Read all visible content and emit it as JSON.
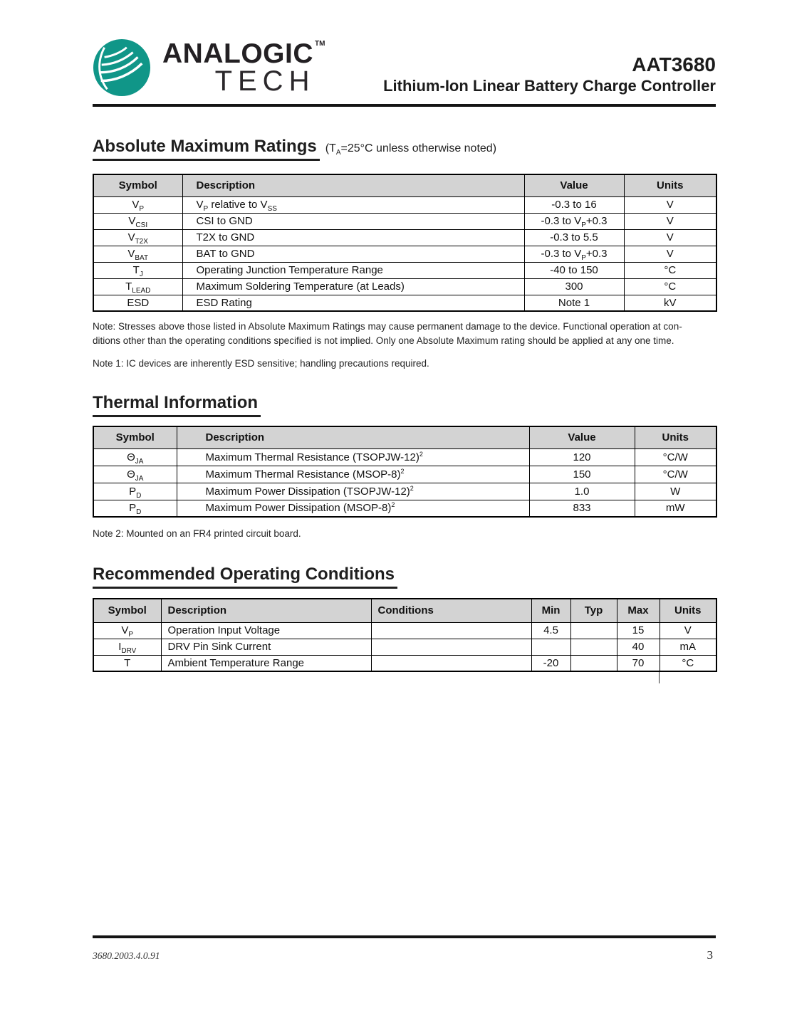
{
  "header": {
    "logo": {
      "line1": "ANALOGIC",
      "line2": "TECH",
      "tm": "TM",
      "teal": "#109688"
    },
    "part_number": "AAT3680",
    "subtitle": "Lithium-Ion Linear Battery Charge Controller"
  },
  "abs_max": {
    "title": "Absolute Maximum Ratings",
    "title_note": "(T~A~=25°C unless otherwise noted)",
    "table": {
      "headers": [
        "Symbol",
        "Description",
        "Value",
        "Units"
      ],
      "rows": [
        [
          "V~P~",
          "V~P~ relative to V~SS~",
          "-0.3 to 16",
          "V"
        ],
        [
          "V~CSI~",
          "CSI to GND",
          "-0.3 to V~P~+0.3",
          "V"
        ],
        [
          "V~T2X~",
          "T2X to GND",
          "-0.3 to 5.5",
          "V"
        ],
        [
          "V~BAT~",
          "BAT to GND",
          "-0.3 to V~P~+0.3",
          "V"
        ],
        [
          "T~J~",
          "Operating Junction Temperature Range",
          "-40 to 150",
          "°C"
        ],
        [
          "T~LEAD~",
          "Maximum Soldering Temperature (at Leads)",
          "300",
          "°C"
        ],
        [
          "ESD",
          "ESD Rating",
          "Note 1",
          "kV"
        ]
      ]
    },
    "note_lines": [
      "Note: Stresses above those listed in Absolute Maximum Ratings may cause permanent damage to the device.  Functional operation at con-",
      "ditions other than the operating conditions specified is not implied.  Only one Absolute Maximum rating should be applied at any one time."
    ],
    "note1": "Note 1: IC devices are inherently ESD sensitive; handling precautions required."
  },
  "thermal": {
    "title": "Thermal Information",
    "table": {
      "headers": [
        "Symbol",
        "Description",
        "Value",
        "Units"
      ],
      "rows": [
        [
          "Θ~JA~",
          "Maximum Thermal Resistance (TSOPJW-12)^2^",
          "120",
          "°C/W"
        ],
        [
          "Θ~JA~",
          "Maximum Thermal Resistance (MSOP-8)^2^",
          "150",
          "°C/W"
        ],
        [
          "P~D~",
          "Maximum Power Dissipation (TSOPJW-12)^2^",
          "1.0",
          "W"
        ],
        [
          "P~D~",
          "Maximum Power Dissipation (MSOP-8)^2^",
          "833",
          "mW"
        ]
      ]
    },
    "note2": "Note 2: Mounted on an FR4 printed circuit board."
  },
  "roc": {
    "title": "Recommended Operating Conditions",
    "table": {
      "headers": [
        "Symbol",
        "Description",
        "Conditions",
        "Min",
        "Typ",
        "Max",
        "Units"
      ],
      "rows": [
        [
          "V~P~",
          "Operation Input Voltage",
          "",
          "4.5",
          "",
          "15",
          "V"
        ],
        [
          "I~DRV~",
          "DRV Pin Sink Current",
          "",
          "",
          "",
          "40",
          "mA"
        ],
        [
          "T",
          "Ambient Temperature Range",
          "",
          "-20",
          "",
          "70",
          "°C"
        ]
      ]
    }
  },
  "footer": {
    "doc_id": "3680.2003.4.0.91",
    "page": "3"
  }
}
